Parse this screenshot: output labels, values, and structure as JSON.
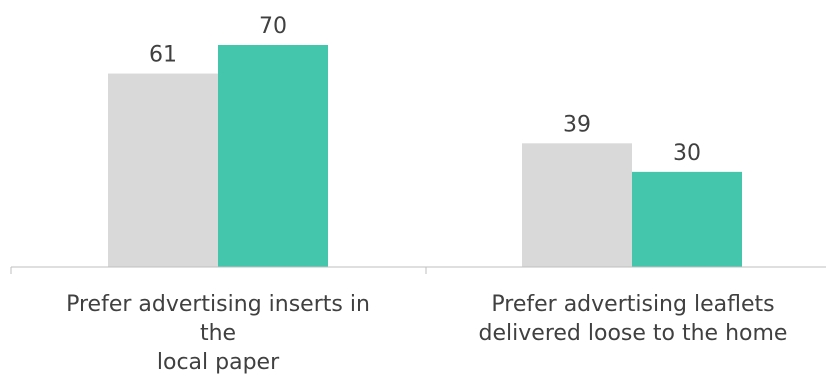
{
  "chart_data": {
    "type": "bar",
    "categories": [
      [
        "Prefer advertising inserts in the",
        "local paper"
      ],
      [
        "Prefer advertising leaflets",
        "delivered loose to the home"
      ]
    ],
    "series": [
      {
        "values": [
          61,
          39
        ],
        "color": "#d9d9d9"
      },
      {
        "values": [
          70,
          30
        ],
        "color": "#43c6ac"
      }
    ],
    "ylim": [
      0,
      70
    ],
    "legend": "none",
    "grid": false
  }
}
